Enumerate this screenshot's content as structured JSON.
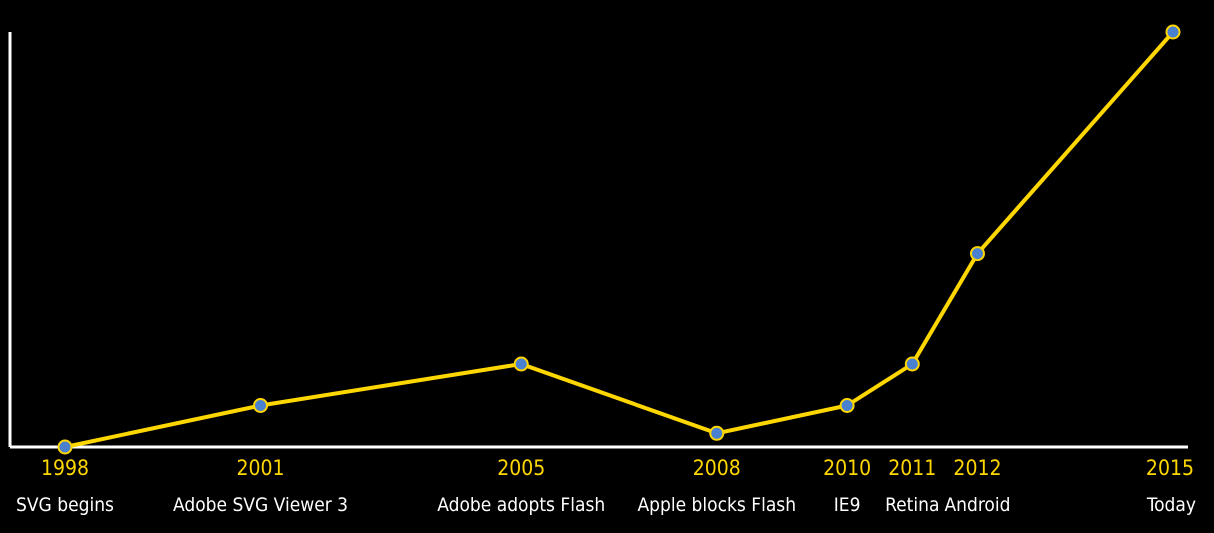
{
  "chart_data": {
    "type": "line",
    "title": "",
    "xlabel": "",
    "ylabel": "",
    "x": [
      1998,
      2001,
      2005,
      2008,
      2010,
      2011,
      2012,
      2015
    ],
    "x_labels": [
      "1998",
      "2001",
      "2005",
      "2008",
      "2010",
      "2011",
      "2012",
      "2015"
    ],
    "annotations": [
      "SVG begins",
      "Adobe SVG Viewer 3",
      "Adobe adopts Flash",
      "Apple blocks Flash",
      "IE9",
      "Retina",
      "Android",
      "Today"
    ],
    "series": [
      {
        "values": [
          0,
          1,
          2,
          0.33,
          1,
          2,
          4.66,
          10
        ]
      }
    ],
    "ylim": [
      0,
      10
    ],
    "grid": false,
    "colors": {
      "background": "#000000",
      "axis": "#FFFFFF",
      "line": "#FFD700",
      "point_fill": "#4A80D0",
      "point_stroke": "#FFD700",
      "year_text": "#FFD700",
      "event_text": "#FFFFFF"
    }
  }
}
